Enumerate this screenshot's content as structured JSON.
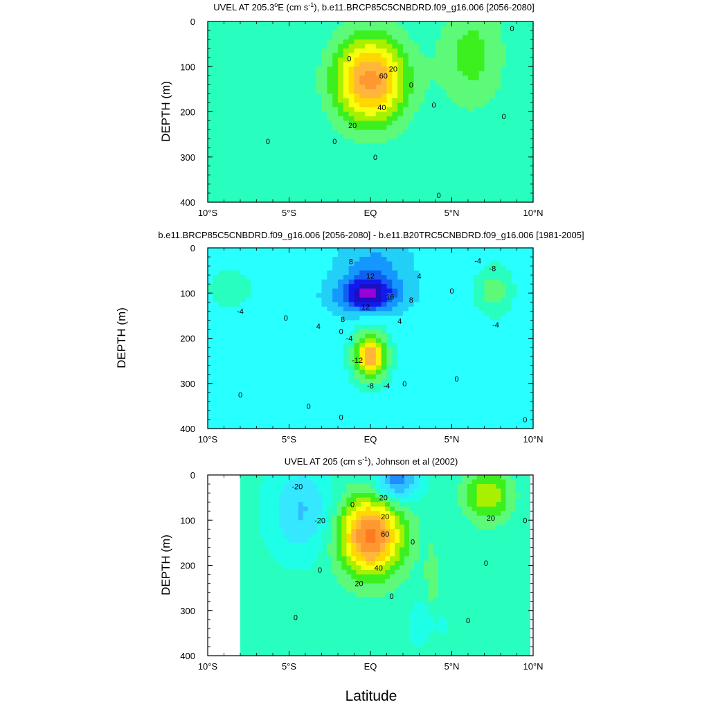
{
  "figure": {
    "xlabel": "Latitude"
  },
  "colors": {
    "scale": [
      "#0a18e0",
      "#1450ff",
      "#1f8cff",
      "#2ebfff",
      "#35e8ff",
      "#1fffe8",
      "#28ffbe",
      "#5cfa78",
      "#3cf020",
      "#a8f000",
      "#f7ff0e",
      "#ffd800",
      "#ffb63b",
      "#ff9830",
      "#ff7a20",
      "#f24818",
      "#e81010"
    ],
    "diff_scale": [
      "#dcdcdc",
      "#f000f0",
      "#9a00d8",
      "#1a10c0",
      "#1418f0",
      "#1060f0",
      "#1498ff",
      "#22cff7",
      "#28ffff",
      "#28ffbe",
      "#5cfa78",
      "#3cf020",
      "#a8f000",
      "#ffee00",
      "#ffb63b",
      "#ff8a20",
      "#ff4a10",
      "#e81010"
    ]
  },
  "chart_data": [
    {
      "type": "heatmap",
      "title": "UVEL AT 205.3oE (cm s-1), b.e11.BRCP85C5CNBDRD.f09_g16.006 [2056-2080]",
      "xlabel": "",
      "ylabel": "DEPTH (m)",
      "x_ticks": [
        "10°S",
        "5°S",
        "EQ",
        "5°N",
        "10°N"
      ],
      "y_ticks": [
        "0",
        "100",
        "200",
        "300",
        "400"
      ],
      "xlim": [
        -10,
        10
      ],
      "ylim": [
        0,
        400
      ],
      "y_inverted": true,
      "contour_labels": [
        {
          "text": "20",
          "lat": 1.4,
          "depth": 105
        },
        {
          "text": "60",
          "lat": 0.8,
          "depth": 120
        },
        {
          "text": "40",
          "lat": 0.7,
          "depth": 190
        },
        {
          "text": "20",
          "lat": -1.1,
          "depth": 230
        },
        {
          "text": "0",
          "lat": -1.3,
          "depth": 82
        },
        {
          "text": "0",
          "lat": 2.5,
          "depth": 140
        },
        {
          "text": "0",
          "lat": 3.9,
          "depth": 185
        },
        {
          "text": "0",
          "lat": -6.3,
          "depth": 265
        },
        {
          "text": "0",
          "lat": -2.2,
          "depth": 265
        },
        {
          "text": "0",
          "lat": 0.3,
          "depth": 300
        },
        {
          "text": "0",
          "lat": 8.2,
          "depth": 210
        },
        {
          "text": "0",
          "lat": 8.7,
          "depth": 15
        },
        {
          "text": "0",
          "lat": 4.2,
          "depth": 385
        }
      ],
      "features": [
        {
          "value": 72,
          "lat": 0.0,
          "depth": 130,
          "sx": 2.2,
          "sy": 95
        },
        {
          "value": 22,
          "lat": 6.2,
          "depth": 75,
          "sx": 2.0,
          "sy": 120
        },
        {
          "value": 8,
          "lat": -6.5,
          "depth": 390,
          "sx": 3.0,
          "sy": 100
        }
      ],
      "levels": [
        -40,
        -30,
        -20,
        -10,
        0,
        10,
        20,
        30,
        40,
        50,
        60,
        70
      ],
      "background_value": -8
    },
    {
      "type": "heatmap",
      "title": "b.e11.BRCP85C5CNBDRD.f09_g16.006 [2056-2080] - b.e11.B20TRC5CNBDRD.f09_g16.006 [1981-2005]",
      "xlabel": "",
      "ylabel": "DEPTH (m)",
      "x_ticks": [
        "10°S",
        "5°S",
        "EQ",
        "5°N",
        "10°N"
      ],
      "y_ticks": [
        "0",
        "100",
        "200",
        "300",
        "400"
      ],
      "xlim": [
        -10,
        10
      ],
      "ylim": [
        0,
        400
      ],
      "y_inverted": true,
      "contour_labels": [
        {
          "text": "8",
          "lat": -1.2,
          "depth": 30
        },
        {
          "text": "12",
          "lat": 0.0,
          "depth": 62
        },
        {
          "text": "4",
          "lat": 3.0,
          "depth": 62
        },
        {
          "text": "16",
          "lat": 1.2,
          "depth": 108
        },
        {
          "text": "8",
          "lat": 2.5,
          "depth": 115
        },
        {
          "text": "12",
          "lat": -0.3,
          "depth": 130
        },
        {
          "text": "8",
          "lat": -1.7,
          "depth": 158
        },
        {
          "text": "4",
          "lat": -3.2,
          "depth": 173
        },
        {
          "text": "4",
          "lat": 1.8,
          "depth": 162
        },
        {
          "text": "0",
          "lat": 5.0,
          "depth": 95
        },
        {
          "text": "-4",
          "lat": -8.0,
          "depth": 140
        },
        {
          "text": "0",
          "lat": -5.2,
          "depth": 155
        },
        {
          "text": "-8",
          "lat": 7.5,
          "depth": 45
        },
        {
          "text": "-4",
          "lat": 6.6,
          "depth": 28
        },
        {
          "text": "-4",
          "lat": 7.7,
          "depth": 170
        },
        {
          "text": "0",
          "lat": -1.8,
          "depth": 185
        },
        {
          "text": "-4",
          "lat": -1.3,
          "depth": 200
        },
        {
          "text": "-12",
          "lat": -0.8,
          "depth": 248
        },
        {
          "text": "-8",
          "lat": 0.0,
          "depth": 305
        },
        {
          "text": "-4",
          "lat": 1.0,
          "depth": 305
        },
        {
          "text": "0",
          "lat": 2.1,
          "depth": 300
        },
        {
          "text": "0",
          "lat": 5.3,
          "depth": 290
        },
        {
          "text": "0",
          "lat": -8.0,
          "depth": 325
        },
        {
          "text": "0",
          "lat": -3.8,
          "depth": 350
        },
        {
          "text": "0",
          "lat": -1.8,
          "depth": 375
        },
        {
          "text": "0",
          "lat": 9.5,
          "depth": 380
        }
      ],
      "features": [
        {
          "value": 19,
          "lat": -0.2,
          "depth": 105,
          "sx": 1.7,
          "sy": 35
        },
        {
          "value": 8,
          "lat": 0.2,
          "depth": 55,
          "sx": 1.8,
          "sy": 60
        },
        {
          "value": -26,
          "lat": 0.0,
          "depth": 240,
          "sx": 1.1,
          "sy": 55
        },
        {
          "value": -9,
          "lat": 7.6,
          "depth": 95,
          "sx": 1.2,
          "sy": 60
        },
        {
          "value": -5,
          "lat": -8.6,
          "depth": 90,
          "sx": 1.8,
          "sy": 60
        }
      ],
      "levels": [
        -24,
        -20,
        -16,
        -12,
        -8,
        -4,
        0,
        4,
        8,
        12,
        16,
        20
      ],
      "background_value": -1
    },
    {
      "type": "heatmap",
      "title": "UVEL AT 205 (cm s-1), Johnson et al (2002)",
      "xlabel": "Latitude",
      "ylabel": "DEPTH (m)",
      "x_ticks": [
        "10°S",
        "5°S",
        "EQ",
        "5°N",
        "10°N"
      ],
      "y_ticks": [
        "0",
        "100",
        "200",
        "300",
        "400"
      ],
      "xlim": [
        -10,
        10
      ],
      "ylim": [
        0,
        400
      ],
      "y_inverted": true,
      "data_lat_range": [
        -8.0,
        9.8
      ],
      "contour_labels": [
        {
          "text": "-20",
          "lat": -4.5,
          "depth": 25
        },
        {
          "text": "-20",
          "lat": -3.1,
          "depth": 100
        },
        {
          "text": "0",
          "lat": -1.1,
          "depth": 65
        },
        {
          "text": "20",
          "lat": 0.8,
          "depth": 50
        },
        {
          "text": "20",
          "lat": 0.9,
          "depth": 92
        },
        {
          "text": "60",
          "lat": 0.9,
          "depth": 130
        },
        {
          "text": "40",
          "lat": 0.5,
          "depth": 205
        },
        {
          "text": "20",
          "lat": -0.7,
          "depth": 240
        },
        {
          "text": "0",
          "lat": 2.6,
          "depth": 148
        },
        {
          "text": "0",
          "lat": -3.1,
          "depth": 210
        },
        {
          "text": "0",
          "lat": 1.3,
          "depth": 268
        },
        {
          "text": "0",
          "lat": -4.6,
          "depth": 315
        },
        {
          "text": "20",
          "lat": 7.4,
          "depth": 95
        },
        {
          "text": "0",
          "lat": 9.5,
          "depth": 100
        },
        {
          "text": "0",
          "lat": 7.1,
          "depth": 195
        },
        {
          "text": "0",
          "lat": 6.0,
          "depth": 322
        }
      ],
      "features": [
        {
          "value": 80,
          "lat": 0.0,
          "depth": 135,
          "sx": 1.9,
          "sy": 85
        },
        {
          "value": 35,
          "lat": 7.2,
          "depth": 45,
          "sx": 1.4,
          "sy": 55
        },
        {
          "value": -42,
          "lat": 1.6,
          "depth": 15,
          "sx": 1.4,
          "sy": 45
        },
        {
          "value": -25,
          "lat": -4.2,
          "depth": 80,
          "sx": 2.0,
          "sy": 100
        },
        {
          "value": -18,
          "lat": 3.5,
          "depth": 330,
          "sx": 1.0,
          "sy": 50
        },
        {
          "value": 12,
          "lat": 3.8,
          "depth": 300,
          "sx": 0.5,
          "sy": 150
        }
      ],
      "levels": [
        -40,
        -30,
        -20,
        -10,
        0,
        10,
        20,
        30,
        40,
        50,
        60,
        70
      ],
      "background_value": -6
    }
  ]
}
